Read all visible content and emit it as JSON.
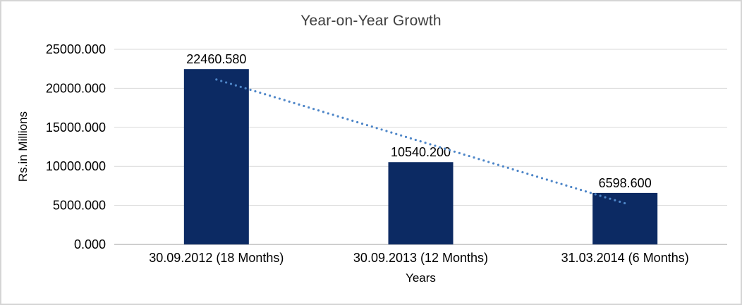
{
  "chart_data": {
    "type": "bar",
    "title": "Year-on-Year Growth",
    "xlabel": "Years",
    "ylabel": "Rs.in Millions",
    "categories": [
      "30.09.2012 (18 Months)",
      "30.09.2013 (12 Months)",
      "31.03.2014 (6 Months)"
    ],
    "values": [
      22460.58,
      10540.2,
      6598.6
    ],
    "value_labels": [
      "22460.580",
      "10540.200",
      "6598.600"
    ],
    "ylim": [
      0,
      25000
    ],
    "ytick_step": 5000,
    "ytick_labels": [
      "0.000",
      "5000.000",
      "10000.000",
      "15000.000",
      "20000.000",
      "25000.000"
    ],
    "grid": true,
    "legend": "none",
    "trendline": {
      "type": "linear",
      "style": "dotted",
      "start_value": 21130.8,
      "end_value": 5268.8,
      "color": "#4e86c8"
    },
    "colors": {
      "bar": "#0c2a63",
      "gridline": "#d9d9d9",
      "axis_line": "#bfbfbf",
      "text": "#000000",
      "title_text": "#3f3f3f",
      "frame_border": "#d5d5d5"
    }
  }
}
